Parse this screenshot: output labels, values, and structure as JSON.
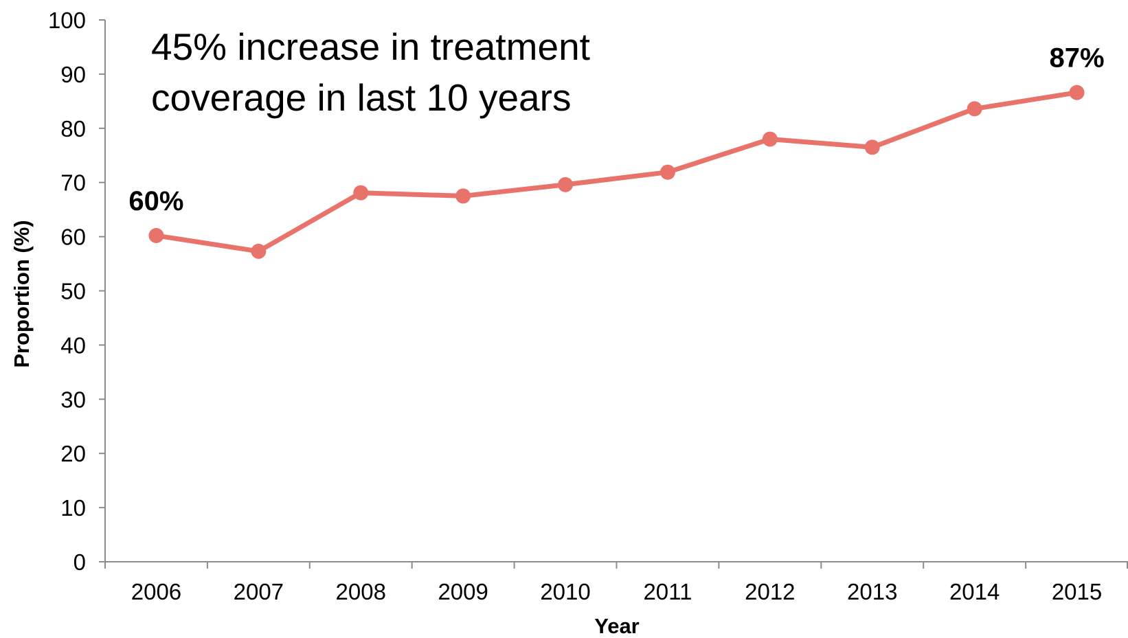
{
  "chart_data": {
    "type": "line",
    "title": "",
    "xlabel": "Year",
    "ylabel": "Proportion (%)",
    "categories": [
      "2006",
      "2007",
      "2008",
      "2009",
      "2010",
      "2011",
      "2012",
      "2013",
      "2014",
      "2015"
    ],
    "series": [
      {
        "values": [
          60.2,
          57.3,
          68.1,
          67.5,
          69.6,
          71.9,
          78.0,
          76.5,
          83.6,
          86.6
        ],
        "color": "#e8736a"
      }
    ],
    "ylim": [
      0,
      100
    ],
    "yticks": [
      0,
      10,
      20,
      30,
      40,
      50,
      60,
      70,
      80,
      90,
      100
    ],
    "grid": false,
    "legend": "none",
    "annotation": {
      "line1": "45% increase in treatment",
      "line2": "coverage in last 10 years"
    },
    "data_labels": [
      {
        "category": "2006",
        "text": "60%"
      },
      {
        "category": "2015",
        "text": "87%"
      }
    ]
  }
}
